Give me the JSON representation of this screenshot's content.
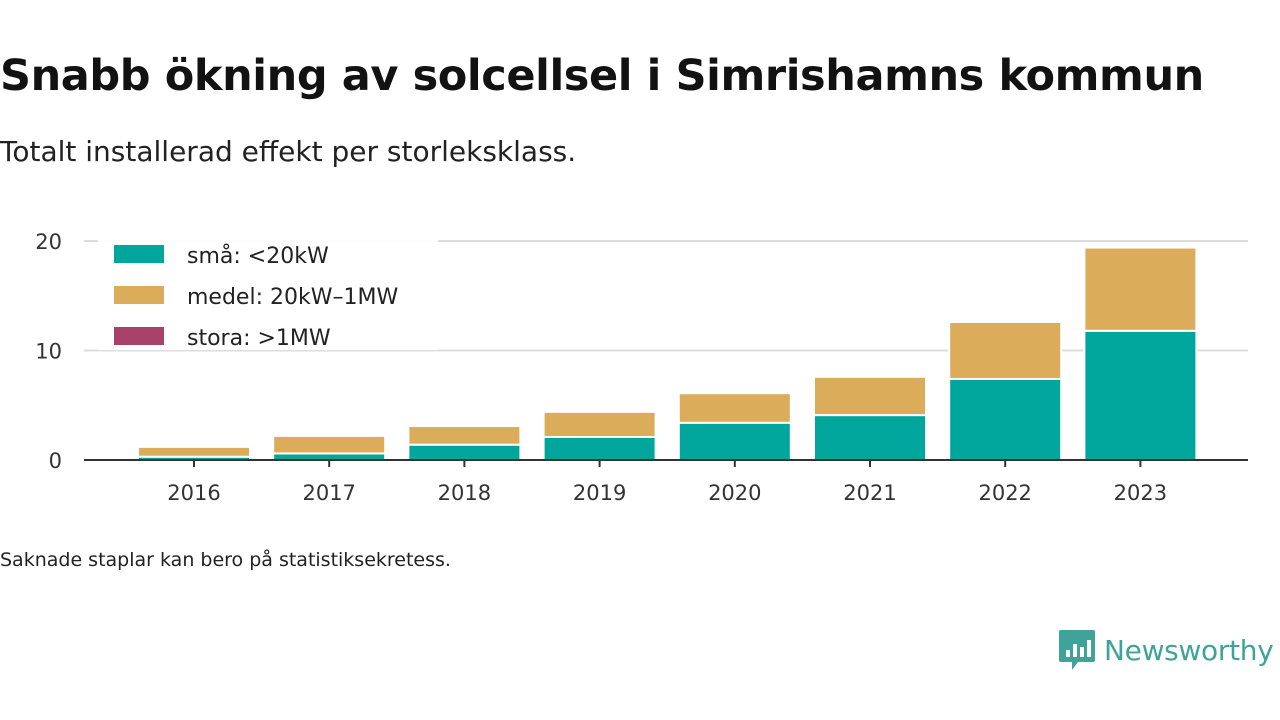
{
  "header": {
    "title": "Snabb ökning av solcellsel i Simrishamns kommun",
    "subtitle": "Totalt installerad effekt per storleksklass."
  },
  "chart_data": {
    "type": "bar",
    "stacked": true,
    "categories": [
      "2016",
      "2017",
      "2018",
      "2019",
      "2020",
      "2021",
      "2022",
      "2023"
    ],
    "series": [
      {
        "name": "små: <20kW",
        "color": "#00a69c",
        "values": [
          0.3,
          0.6,
          1.4,
          2.1,
          3.4,
          4.1,
          7.4,
          11.8
        ]
      },
      {
        "name": "medel: 20kW–1MW",
        "color": "#dbac59",
        "values": [
          0.9,
          1.6,
          1.7,
          2.3,
          2.7,
          3.5,
          5.2,
          7.6
        ]
      },
      {
        "name": "stora: >1MW",
        "color": "#a8426b",
        "values": [
          0,
          0,
          0,
          0,
          0,
          0,
          0,
          0
        ]
      }
    ],
    "yticks": [
      0,
      10,
      20
    ],
    "ylim": [
      0,
      20
    ],
    "grid": true,
    "legend_position": "top-left"
  },
  "footer": {
    "note": "Saknade staplar kan bero på statistiksekretess.",
    "brand": "Newsworthy",
    "brand_color": "#3fa39a",
    "brand_icon": "bar-chart-speech-bubble-icon"
  }
}
